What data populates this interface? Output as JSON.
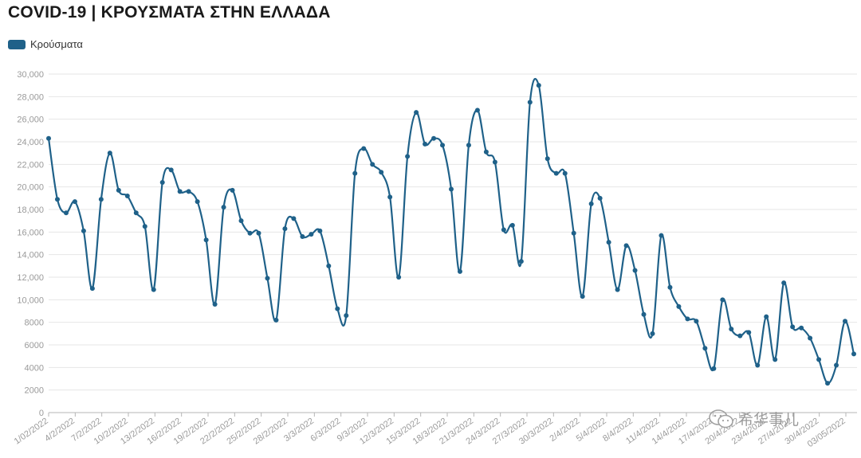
{
  "title": "COVID-19 | ΚΡΟΥΣΜΑΤΑ ΣΤΗΝ ΕΛΛΑΔΑ",
  "legend": {
    "label": "Κρούσματα"
  },
  "watermark": "希华事儿",
  "colors": {
    "line": "#1f6189",
    "grid": "#e6e6e6",
    "axis": "#b5b5b5",
    "tick_text": "#9a9a9a"
  },
  "chart_data": {
    "type": "line",
    "ylim": [
      0,
      30000
    ],
    "yticks": [
      0,
      2000,
      4000,
      6000,
      8000,
      10000,
      12000,
      14000,
      16000,
      18000,
      20000,
      22000,
      24000,
      26000,
      28000,
      30000
    ],
    "ytick_labels": [
      "0",
      "2000",
      "4000",
      "6000",
      "8000",
      "10,000",
      "12,000",
      "14,000",
      "16,000",
      "18,000",
      "20,000",
      "22,000",
      "24,000",
      "26,000",
      "28,000",
      "30,000"
    ],
    "xtick_labels": [
      "1/02/2022",
      "4/2/2022",
      "7/2/2022",
      "10/2/2022",
      "13/2/2022",
      "16/2/2022",
      "19/2/2022",
      "22/2/2022",
      "25/2/2022",
      "28/2/2022",
      "3/3/2022",
      "6/3/2022",
      "9/3/2022",
      "12/3/2022",
      "15/3/2022",
      "18/3/2022",
      "21/3/2022",
      "24/3/2022",
      "27/3/2022",
      "30/3/2022",
      "2/4/2022",
      "5/4/2022",
      "8/4/2022",
      "11/4/2022",
      "14/4/2022",
      "17/4/2022",
      "20/4/2022",
      "23/4/2022",
      "27/4/2022",
      "30/4/2022",
      "03/05/2022"
    ],
    "series": [
      {
        "name": "Κρούσματα",
        "values": [
          24300,
          18900,
          17700,
          18700,
          16100,
          11000,
          18900,
          23000,
          19700,
          19200,
          17700,
          16500,
          10900,
          20400,
          21500,
          19600,
          19600,
          18700,
          15300,
          9600,
          18200,
          19700,
          17000,
          15900,
          15900,
          11900,
          8200,
          16300,
          17200,
          15600,
          15800,
          16100,
          13000,
          9200,
          8600,
          21200,
          23400,
          22000,
          21300,
          19100,
          12000,
          22700,
          26600,
          23800,
          24300,
          23700,
          19800,
          12500,
          23700,
          26800,
          23100,
          22200,
          16200,
          16600,
          13400,
          27500,
          29000,
          22500,
          21200,
          21200,
          15900,
          10300,
          18500,
          19000,
          15100,
          10900,
          14800,
          12600,
          8700,
          7000,
          15700,
          11100,
          9400,
          8300,
          8100,
          5700,
          3900,
          10000,
          7400,
          6800,
          7100,
          4200,
          8500,
          4700,
          11500,
          7600,
          7500,
          6600,
          4700,
          2600,
          4200,
          8100,
          5200
        ]
      }
    ]
  }
}
